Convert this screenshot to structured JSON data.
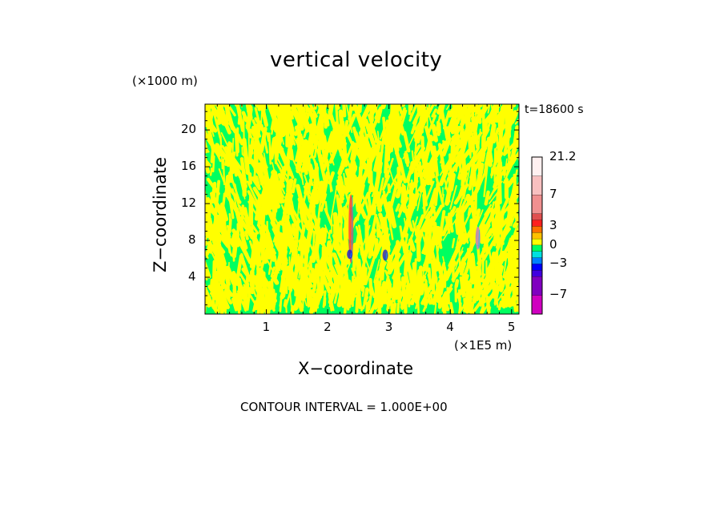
{
  "chart_data": {
    "type": "heatmap",
    "title": "vertical velocity",
    "xlabel": "X−coordinate",
    "ylabel": "Z−coordinate",
    "x_unit_label": "(×1E5 m)",
    "y_unit_label": "(×1000 m)",
    "time_label": "t=18600 s",
    "footer": "CONTOUR INTERVAL = 1.000E+00",
    "xlim": [
      0,
      5.12
    ],
    "ylim": [
      0,
      22.8
    ],
    "x_ticks": [
      {
        "value": 1,
        "label": "1"
      },
      {
        "value": 2,
        "label": "2"
      },
      {
        "value": 3,
        "label": "3"
      },
      {
        "value": 4,
        "label": "4"
      },
      {
        "value": 5,
        "label": "5"
      }
    ],
    "y_ticks": [
      {
        "value": 4,
        "label": "4"
      },
      {
        "value": 8,
        "label": "8"
      },
      {
        "value": 12,
        "label": "12"
      },
      {
        "value": 16,
        "label": "16"
      },
      {
        "value": 20,
        "label": "20"
      }
    ],
    "background_levels": {
      "positive": "#ffff00",
      "near_zero": "#00ff60"
    },
    "features": [
      {
        "x": 2.38,
        "z_min": 5.5,
        "z_max": 13,
        "kind": "updraft",
        "color": "#ff4040"
      },
      {
        "x": 2.36,
        "z_min": 6,
        "z_max": 7,
        "kind": "downdraft",
        "color": "#2020d0"
      },
      {
        "x": 2.94,
        "z_min": 5.8,
        "z_max": 7,
        "kind": "downdraft",
        "color": "#3030c0"
      },
      {
        "x": 4.45,
        "z_min": 7,
        "z_max": 9.5,
        "kind": "updraft",
        "color": "#c080c0"
      }
    ],
    "colorbar": {
      "levels": [
        {
          "value": -10,
          "color": "#ff00a8"
        },
        {
          "value": -7,
          "color": "#d000c0"
        },
        {
          "value": -5,
          "color": "#8000c0"
        },
        {
          "value": -4,
          "color": "#4000e0"
        },
        {
          "value": -3,
          "color": "#0000ff"
        },
        {
          "value": -2,
          "color": "#0080ff"
        },
        {
          "value": -1,
          "color": "#00e0e0"
        },
        {
          "value": 0,
          "color": "#00ff60"
        },
        {
          "value": 1,
          "color": "#ffff00"
        },
        {
          "value": 2,
          "color": "#ffc000"
        },
        {
          "value": 3,
          "color": "#ff7000"
        },
        {
          "value": 4,
          "color": "#ff2020"
        },
        {
          "value": 5,
          "color": "#e05050"
        },
        {
          "value": 7,
          "color": "#f09090"
        },
        {
          "value": 12,
          "color": "#f8c0c0"
        },
        {
          "value": 21.2,
          "color": "#fff0f0"
        }
      ],
      "labels": [
        {
          "value": 21.2,
          "text": "21.2"
        },
        {
          "value": 7,
          "text": "7"
        },
        {
          "value": 3,
          "text": "3"
        },
        {
          "value": 0,
          "text": "0"
        },
        {
          "value": -3,
          "text": "−3"
        },
        {
          "value": -7,
          "text": "−7"
        }
      ]
    }
  }
}
